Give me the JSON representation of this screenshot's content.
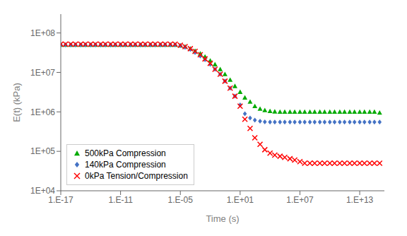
{
  "chart_data": {
    "type": "scatter",
    "title": "",
    "xlabel": "Time (s)",
    "ylabel": "E(t) (kPa)",
    "log": true,
    "grid": false,
    "legend": "lower left",
    "xlim": [
      1e-17,
      3000000000000000.0
    ],
    "ylim": [
      10000.0,
      300000000.0
    ],
    "xticks": [
      {
        "value": 1e-17,
        "label": "1.E-17"
      },
      {
        "value": 1e-11,
        "label": "1.E-11"
      },
      {
        "value": 1e-05,
        "label": "1.E-05"
      },
      {
        "value": 10.0,
        "label": "1.E+01"
      },
      {
        "value": 10000000.0,
        "label": "1.E+07"
      },
      {
        "value": 10000000000000.0,
        "label": "1.E+13"
      }
    ],
    "yticks": [
      {
        "value": 10000.0,
        "label": "1E+04"
      },
      {
        "value": 100000.0,
        "label": "1E+05"
      },
      {
        "value": 1000000.0,
        "label": "1E+06"
      },
      {
        "value": 10000000.0,
        "label": "1E+07"
      },
      {
        "value": 100000000.0,
        "label": "1E+08"
      }
    ],
    "x": [
      1e-17,
      3e-17,
      1e-16,
      3e-16,
      1e-15,
      3e-15,
      1e-14,
      3e-14,
      1e-13,
      3e-13,
      1e-12,
      3e-12,
      1e-11,
      3e-11,
      1e-10,
      3e-10,
      1e-09,
      3e-09,
      1e-08,
      3e-08,
      1e-07,
      3e-07,
      1e-06,
      3e-06,
      1e-05,
      3e-05,
      0.0001,
      0.0003,
      0.001,
      0.003,
      0.01,
      0.03,
      0.1,
      0.3,
      1,
      3,
      10,
      30,
      100,
      300,
      1000,
      3000,
      10000.0,
      30000.0,
      100000.0,
      300000.0,
      1000000.0,
      3000000.0,
      10000000.0,
      30000000.0,
      100000000.0,
      300000000.0,
      1000000000.0,
      3000000000.0,
      10000000000.0,
      30000000000.0,
      100000000000.0,
      300000000000.0,
      1000000000000.0,
      3000000000000.0,
      10000000000000.0,
      30000000000000.0,
      100000000000000.0,
      300000000000000.0,
      1000000000000000.0
    ],
    "series": [
      {
        "name": "500kPa Compression",
        "color": "#00AA00",
        "marker": "triangle",
        "values": [
          50000000.0,
          50000000.0,
          50000000.0,
          50000000.0,
          50000000.0,
          50000000.0,
          50000000.0,
          50000000.0,
          50000000.0,
          50000000.0,
          50000000.0,
          50000000.0,
          50000000.0,
          50000000.0,
          50000000.0,
          50000000.0,
          50000000.0,
          50000000.0,
          50000000.0,
          50000000.0,
          50000000.0,
          50000000.0,
          50000000.0,
          50000000.0,
          48000000.0,
          45000000.0,
          40000000.0,
          35000000.0,
          30000000.0,
          25000000.0,
          20000000.0,
          16000000.0,
          12000000.0,
          9000000.0,
          6500000.0,
          4500000.0,
          3200000.0,
          2300000.0,
          1800000.0,
          1400000.0,
          1200000.0,
          1100000.0,
          1050000.0,
          1020000.0,
          1000000.0,
          1000000.0,
          1000000.0,
          1000000.0,
          1000000.0,
          1000000.0,
          1000000.0,
          1000000.0,
          1000000.0,
          1000000.0,
          1000000.0,
          1000000.0,
          1000000.0,
          1000000.0,
          1000000.0,
          1000000.0,
          1000000.0,
          1000000.0,
          1000000.0,
          1000000.0,
          950000.0
        ]
      },
      {
        "name": "140kPa Compression",
        "color": "#4472C4",
        "marker": "diamond",
        "values": [
          50000000.0,
          50000000.0,
          50000000.0,
          50000000.0,
          50000000.0,
          50000000.0,
          50000000.0,
          50000000.0,
          50000000.0,
          50000000.0,
          50000000.0,
          50000000.0,
          50000000.0,
          50000000.0,
          50000000.0,
          50000000.0,
          50000000.0,
          50000000.0,
          50000000.0,
          50000000.0,
          50000000.0,
          50000000.0,
          50000000.0,
          50000000.0,
          48000000.0,
          43000000.0,
          38000000.0,
          32000000.0,
          26000000.0,
          21000000.0,
          16000000.0,
          12000000.0,
          9000000.0,
          6000000.0,
          4000000.0,
          2500000.0,
          1500000.0,
          900000.0,
          700000.0,
          620000.0,
          580000.0,
          560000.0,
          550000.0,
          550000.0,
          550000.0,
          550000.0,
          550000.0,
          550000.0,
          550000.0,
          550000.0,
          550000.0,
          550000.0,
          550000.0,
          550000.0,
          550000.0,
          550000.0,
          550000.0,
          550000.0,
          550000.0,
          550000.0,
          550000.0,
          550000.0,
          550000.0,
          550000.0,
          550000.0
        ]
      },
      {
        "name": "0kPa Tension/Compression",
        "color": "#FF0000",
        "marker": "x",
        "values": [
          52000000.0,
          52000000.0,
          52000000.0,
          52000000.0,
          52000000.0,
          52000000.0,
          52000000.0,
          52000000.0,
          52000000.0,
          52000000.0,
          52000000.0,
          52000000.0,
          52000000.0,
          52000000.0,
          52000000.0,
          52000000.0,
          52000000.0,
          52000000.0,
          52000000.0,
          52000000.0,
          52000000.0,
          52000000.0,
          52000000.0,
          52000000.0,
          49000000.0,
          45000000.0,
          40000000.0,
          34000000.0,
          28000000.0,
          22000000.0,
          17000000.0,
          12000000.0,
          9000000.0,
          6000000.0,
          4000000.0,
          2500000.0,
          1400000.0,
          650000.0,
          380000.0,
          220000.0,
          150000.0,
          110000.0,
          90000.0,
          80000.0,
          75000.0,
          70000.0,
          65000.0,
          60000.0,
          55000.0,
          50000.0,
          50000.0,
          50000.0,
          50000.0,
          50000.0,
          50000.0,
          50000.0,
          50000.0,
          50000.0,
          50000.0,
          50000.0,
          50000.0,
          50000.0,
          50000.0,
          50000.0,
          50000.0
        ]
      }
    ]
  }
}
